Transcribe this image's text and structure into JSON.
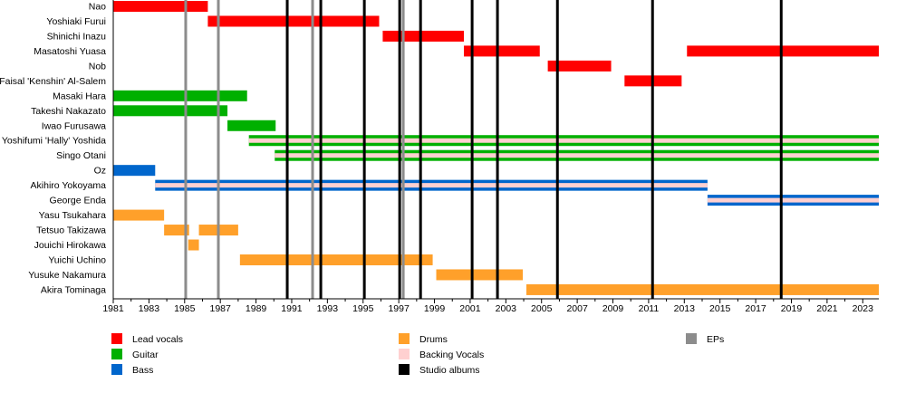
{
  "chart_data": {
    "type": "timeline",
    "xlim": [
      1981,
      2023.9
    ],
    "x_ticks": [
      1981,
      1983,
      1985,
      1987,
      1989,
      1991,
      1993,
      1995,
      1997,
      1999,
      2001,
      2003,
      2005,
      2007,
      2009,
      2011,
      2013,
      2015,
      2017,
      2019,
      2021,
      2023
    ],
    "colors": {
      "lead_vocals": "#ff0000",
      "guitar": "#00b000",
      "bass": "#0066cc",
      "drums": "#ffa02a",
      "backing_vocals": "#ffd0d0",
      "studio_albums": "#000000",
      "eps": "#8c8c8c"
    },
    "members": [
      {
        "name": "Nao",
        "periods": [
          {
            "role": "lead_vocals",
            "start": 1981,
            "end": 1986.3
          }
        ]
      },
      {
        "name": "Yoshiaki Furui",
        "periods": [
          {
            "role": "lead_vocals",
            "start": 1986.3,
            "end": 1995.9
          }
        ]
      },
      {
        "name": "Shinichi Inazu",
        "periods": [
          {
            "role": "lead_vocals",
            "start": 1996.1,
            "end": 2000.65
          }
        ]
      },
      {
        "name": "Masatoshi Yuasa",
        "periods": [
          {
            "role": "lead_vocals",
            "start": 2000.65,
            "end": 2004.9
          },
          {
            "role": "lead_vocals",
            "start": 2013.15,
            "end": 2023.9
          }
        ]
      },
      {
        "name": "Nob",
        "periods": [
          {
            "role": "lead_vocals",
            "start": 2005.35,
            "end": 2008.9
          }
        ]
      },
      {
        "name": "Faisal 'Kenshin' Al-Salem",
        "periods": [
          {
            "role": "lead_vocals",
            "start": 2009.65,
            "end": 2012.85
          }
        ]
      },
      {
        "name": "Masaki Hara",
        "periods": [
          {
            "role": "guitar",
            "start": 1981,
            "end": 1988.5
          }
        ]
      },
      {
        "name": "Takeshi Nakazato",
        "periods": [
          {
            "role": "guitar",
            "start": 1981,
            "end": 1987.4
          }
        ]
      },
      {
        "name": "Iwao Furusawa",
        "periods": [
          {
            "role": "guitar",
            "start": 1987.4,
            "end": 1990.1
          }
        ]
      },
      {
        "name": "Yoshifumi 'Hally' Yoshida",
        "periods": [
          {
            "role": "guitar",
            "backing": true,
            "start": 1988.6,
            "end": 2023.9
          }
        ]
      },
      {
        "name": "Singo Otani",
        "periods": [
          {
            "role": "guitar",
            "backing": true,
            "start": 1990.05,
            "end": 2023.9
          }
        ]
      },
      {
        "name": "Oz",
        "periods": [
          {
            "role": "bass",
            "start": 1981,
            "end": 1983.35
          }
        ]
      },
      {
        "name": "Akihiro Yokoyama",
        "periods": [
          {
            "role": "bass",
            "backing": true,
            "start": 1983.35,
            "end": 2014.3
          }
        ]
      },
      {
        "name": "George Enda",
        "periods": [
          {
            "role": "bass",
            "backing": true,
            "start": 2014.3,
            "end": 2023.9
          }
        ]
      },
      {
        "name": "Yasu Tsukahara",
        "periods": [
          {
            "role": "drums",
            "start": 1981,
            "end": 1983.85
          }
        ]
      },
      {
        "name": "Tetsuo Takizawa",
        "periods": [
          {
            "role": "drums",
            "start": 1983.85,
            "end": 1985.25
          },
          {
            "role": "drums",
            "start": 1985.8,
            "end": 1988.0
          }
        ]
      },
      {
        "name": "Jouichi Hirokawa",
        "periods": [
          {
            "role": "drums",
            "start": 1985.2,
            "end": 1985.8
          }
        ]
      },
      {
        "name": "Yuichi Uchino",
        "periods": [
          {
            "role": "drums",
            "start": 1988.1,
            "end": 1998.9
          }
        ]
      },
      {
        "name": "Yusuke Nakamura",
        "periods": [
          {
            "role": "drums",
            "start": 1999.1,
            "end": 2003.95
          }
        ]
      },
      {
        "name": "Akira Tominaga",
        "periods": [
          {
            "role": "drums",
            "start": 2004.15,
            "end": 2023.9
          }
        ]
      }
    ],
    "studio_albums": [
      1990.75,
      1992.63,
      1995.07,
      1997.05,
      1998.22,
      2001.11,
      2002.53,
      2005.89,
      2011.22,
      2018.43
    ],
    "eps": [
      1985.06,
      1986.89,
      1992.17,
      1997.25
    ],
    "legend": [
      {
        "key": "lead_vocals",
        "label": "Lead vocals"
      },
      {
        "key": "guitar",
        "label": "Guitar"
      },
      {
        "key": "bass",
        "label": "Bass"
      },
      {
        "key": "drums",
        "label": "Drums"
      },
      {
        "key": "backing_vocals",
        "label": "Backing Vocals"
      },
      {
        "key": "studio_albums",
        "label": "Studio albums"
      },
      {
        "key": "eps",
        "label": "EPs"
      }
    ],
    "legend_placement": "bottom",
    "grid": false
  }
}
